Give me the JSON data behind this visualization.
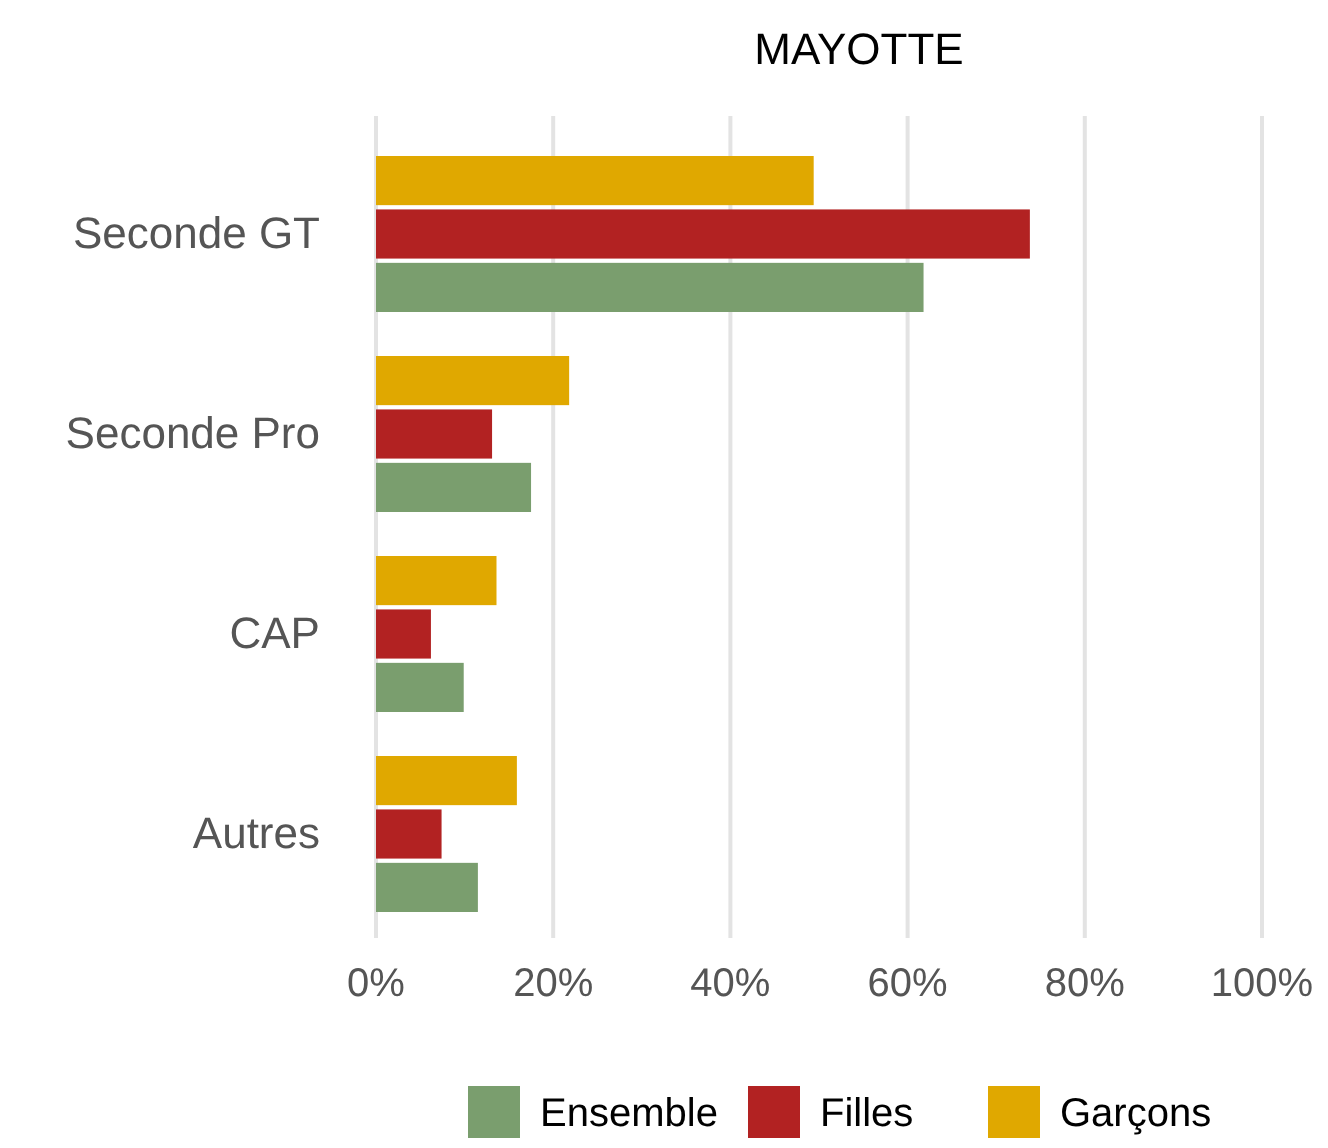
{
  "chart_data": {
    "type": "bar",
    "orientation": "horizontal",
    "title": "MAYOTTE",
    "categories": [
      "Seconde GT",
      "Seconde Pro",
      "CAP",
      "Autres"
    ],
    "series": [
      {
        "name": "Ensemble",
        "color": "#7a9e6e",
        "values": [
          61.8,
          17.5,
          9.9,
          11.5
        ]
      },
      {
        "name": "Filles",
        "color": "#b22222",
        "values": [
          73.8,
          13.1,
          6.2,
          7.4
        ]
      },
      {
        "name": "Garçons",
        "color": "#e0a800",
        "values": [
          49.4,
          21.8,
          13.6,
          15.9
        ]
      }
    ],
    "xlim": [
      0,
      100
    ],
    "xticks": [
      {
        "value": 0,
        "label": "0%"
      },
      {
        "value": 20,
        "label": "20%"
      },
      {
        "value": 40,
        "label": "40%"
      },
      {
        "value": 60,
        "label": "60%"
      },
      {
        "value": 80,
        "label": "80%"
      },
      {
        "value": 100,
        "label": "100%"
      }
    ],
    "grid": "x",
    "legend": "bottom"
  }
}
